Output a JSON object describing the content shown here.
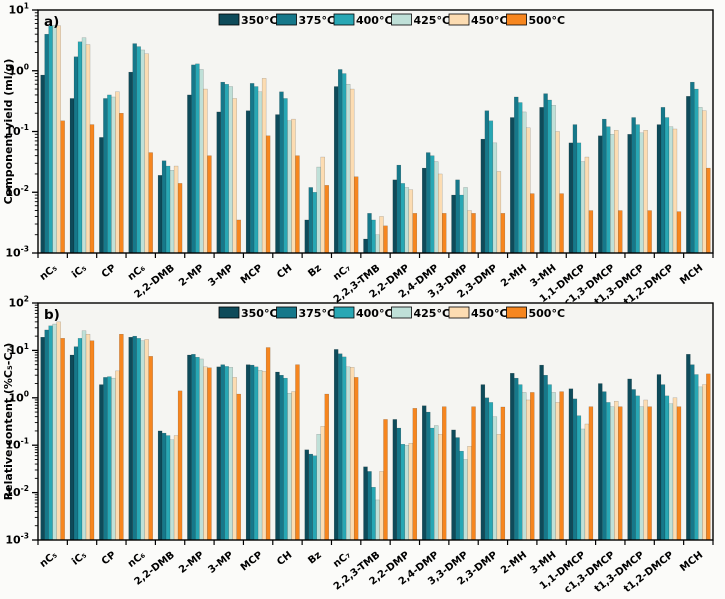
{
  "figure": {
    "background": "#fbfbf9",
    "plot_background": "#f5f5f2",
    "axis_color": "#000000"
  },
  "chart_data": [
    {
      "type": "bar",
      "panel_label": "a)",
      "ylabel": "Component yield (ml/g)",
      "yscale": "log",
      "ylim": [
        0.001,
        10
      ],
      "ytick_exponents": [
        1,
        0,
        -1,
        -2,
        -3
      ],
      "grid": false,
      "legend_position": "top-center",
      "categories": [
        "nC₅",
        "iC₅",
        "CP",
        "nC₆",
        "2,2-DMB",
        "2-MP",
        "3-MP",
        "MCP",
        "CH",
        "Bz",
        "nC₇",
        "2,2,3-TMB",
        "2,2-DMP",
        "2,4-DMP",
        "3,3-DMP",
        "2,3-DMP",
        "2-MH",
        "3-MH",
        "1,1-DMCP",
        "c1,3-DMCP",
        "t1,3-DMCP",
        "t1,2-DMCP",
        "MCH"
      ],
      "series": [
        {
          "name": "350°C",
          "color": "#0e4b5a",
          "values": [
            0.85,
            0.35,
            0.08,
            0.95,
            0.019,
            0.4,
            0.21,
            0.22,
            0.19,
            0.0035,
            0.55,
            0.0017,
            0.016,
            0.025,
            0.009,
            0.075,
            0.17,
            0.25,
            0.065,
            0.085,
            0.09,
            0.13,
            0.38
          ]
        },
        {
          "name": "375°C",
          "color": "#16788a",
          "values": [
            4.0,
            1.7,
            0.35,
            2.8,
            0.033,
            1.25,
            0.65,
            0.62,
            0.45,
            0.012,
            1.05,
            0.0045,
            0.028,
            0.045,
            0.016,
            0.22,
            0.37,
            0.42,
            0.13,
            0.16,
            0.17,
            0.25,
            0.65
          ]
        },
        {
          "name": "400°C",
          "color": "#28a7b4",
          "values": [
            5.5,
            3.0,
            0.4,
            2.5,
            0.027,
            1.3,
            0.6,
            0.55,
            0.35,
            0.01,
            0.9,
            0.0035,
            0.014,
            0.04,
            0.009,
            0.15,
            0.3,
            0.33,
            0.065,
            0.12,
            0.13,
            0.17,
            0.5
          ]
        },
        {
          "name": "425°C",
          "color": "#bfe0d8",
          "values": [
            5.6,
            3.5,
            0.37,
            2.2,
            0.023,
            1.05,
            0.55,
            0.45,
            0.15,
            0.026,
            0.6,
            0.002,
            0.012,
            0.032,
            0.012,
            0.065,
            0.21,
            0.27,
            0.032,
            0.09,
            0.095,
            0.12,
            0.25
          ]
        },
        {
          "name": "450°C",
          "color": "#fcdcb2",
          "values": [
            5.5,
            2.7,
            0.45,
            1.9,
            0.027,
            0.5,
            0.35,
            0.75,
            0.16,
            0.038,
            0.5,
            0.004,
            0.011,
            0.02,
            0.005,
            0.022,
            0.115,
            0.1,
            0.038,
            0.105,
            0.105,
            0.11,
            0.22
          ]
        },
        {
          "name": "500°C",
          "color": "#f6861f",
          "values": [
            0.15,
            0.13,
            0.2,
            0.045,
            0.014,
            0.04,
            0.0035,
            0.085,
            0.04,
            0.013,
            0.018,
            0.0028,
            0.0045,
            0.0045,
            0.0045,
            0.0045,
            0.0095,
            0.0095,
            0.005,
            0.005,
            0.005,
            0.0048,
            0.025
          ]
        }
      ]
    },
    {
      "type": "bar",
      "panel_label": "b)",
      "ylabel": "Relative content (%C₅-C₇)",
      "yscale": "log",
      "ylim": [
        0.001,
        100
      ],
      "ytick_exponents": [
        2,
        1,
        0,
        -1,
        -2,
        -3
      ],
      "grid": false,
      "legend_position": "top-center",
      "categories": [
        "nC₅",
        "iC₅",
        "CP",
        "nC₆",
        "2,2-DMB",
        "2-MP",
        "3-MP",
        "MCP",
        "CH",
        "Bz",
        "nC₇",
        "2,2,3-TMB",
        "2,2-DMP",
        "2,4-DMP",
        "3,3-DMP",
        "2,3-DMP",
        "2-MH",
        "3-MH",
        "1,1-DMCP",
        "c1,3-DMCP",
        "t1,3-DMCP",
        "t1,2-DMCP",
        "MCH"
      ],
      "series": [
        {
          "name": "350°C",
          "color": "#0e4b5a",
          "values": [
            19,
            8,
            1.9,
            19,
            0.2,
            8.0,
            4.5,
            5.0,
            3.5,
            0.08,
            10.5,
            0.035,
            0.35,
            0.68,
            0.21,
            1.9,
            3.3,
            4.9,
            1.55,
            2.0,
            2.5,
            3.1,
            8.3
          ]
        },
        {
          "name": "375°C",
          "color": "#16788a",
          "values": [
            27,
            12,
            2.7,
            20,
            0.18,
            8.3,
            5.0,
            4.9,
            3.0,
            0.065,
            8.5,
            0.028,
            0.23,
            0.5,
            0.145,
            1.0,
            2.6,
            3.0,
            0.95,
            1.35,
            1.5,
            1.9,
            5.0
          ]
        },
        {
          "name": "400°C",
          "color": "#28a7b4",
          "values": [
            33,
            18,
            2.8,
            18,
            0.16,
            7.2,
            4.6,
            4.5,
            2.6,
            0.06,
            7.3,
            0.013,
            0.105,
            0.23,
            0.075,
            0.8,
            1.9,
            1.9,
            0.42,
            0.8,
            1.1,
            1.1,
            3.1
          ]
        },
        {
          "name": "425°C",
          "color": "#bfe0d8",
          "values": [
            36,
            26,
            2.6,
            16,
            0.13,
            6.6,
            4.4,
            3.8,
            1.25,
            0.17,
            4.5,
            0.007,
            0.1,
            0.26,
            0.05,
            0.4,
            1.3,
            1.3,
            0.22,
            0.65,
            0.65,
            0.75,
            1.7
          ]
        },
        {
          "name": "450°C",
          "color": "#fcdcb2",
          "values": [
            40,
            22,
            3.7,
            17,
            0.16,
            4.5,
            2.7,
            3.6,
            1.35,
            0.25,
            4.4,
            0.028,
            0.11,
            0.17,
            0.095,
            0.17,
            0.9,
            0.8,
            0.28,
            0.85,
            0.9,
            1.0,
            1.9
          ]
        },
        {
          "name": "500°C",
          "color": "#f6861f",
          "values": [
            18,
            16,
            22,
            7.5,
            1.4,
            4.3,
            1.2,
            11.5,
            5.0,
            1.2,
            2.7,
            0.35,
            0.6,
            0.65,
            0.65,
            0.64,
            1.3,
            1.35,
            0.65,
            0.65,
            0.65,
            0.65,
            3.2
          ]
        }
      ]
    }
  ]
}
